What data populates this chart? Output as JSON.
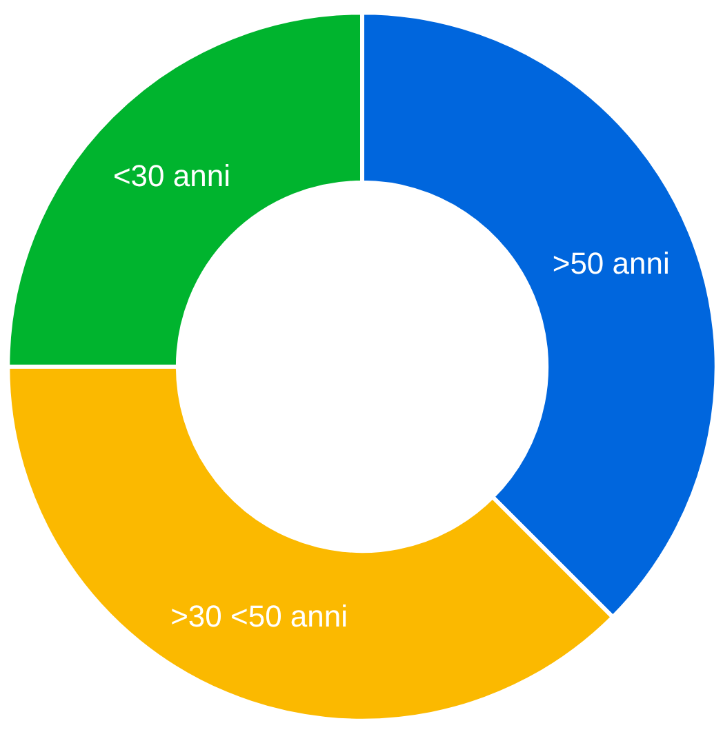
{
  "chart_data": {
    "type": "donut",
    "categories": [
      ">50 anni",
      ">30 <50 anni",
      "<30 anni"
    ],
    "values": [
      37.5,
      37.5,
      25
    ],
    "colors": [
      "#0066dd",
      "#fbb900",
      "#00b42e"
    ]
  }
}
